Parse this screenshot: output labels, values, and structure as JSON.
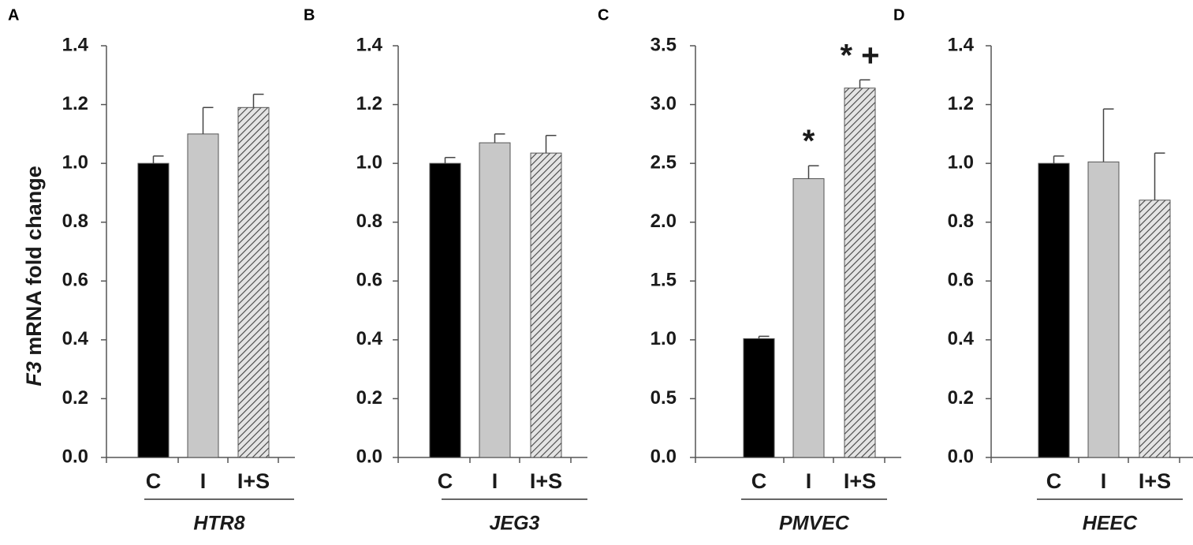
{
  "y_axis_title": {
    "italic": "F3",
    "rest": " mRNA fold change"
  },
  "colors": {
    "control": "#000000",
    "i": "#c8c8c8",
    "hatch": "#444444",
    "hatch_bg": "#e4e4e4",
    "axis": "#555555"
  },
  "chart_data": [
    {
      "type": "bar",
      "panel": "A",
      "cell_line": "HTR8",
      "categories": [
        "C",
        "I",
        "I+S"
      ],
      "values": [
        1.0,
        1.1,
        1.19
      ],
      "errors": [
        0.025,
        0.09,
        0.045
      ],
      "ylim": [
        0,
        1.4
      ],
      "yticks": [
        "0.0",
        "0.2",
        "0.4",
        "0.6",
        "0.8",
        "1.0",
        "1.2",
        "1.4"
      ],
      "annotations": [
        "",
        "",
        ""
      ]
    },
    {
      "type": "bar",
      "panel": "B",
      "cell_line": "JEG3",
      "categories": [
        "C",
        "I",
        "I+S"
      ],
      "values": [
        1.0,
        1.07,
        1.035
      ],
      "errors": [
        0.02,
        0.03,
        0.06
      ],
      "ylim": [
        0,
        1.4
      ],
      "yticks": [
        "0.0",
        "0.2",
        "0.4",
        "0.6",
        "0.8",
        "1.0",
        "1.2",
        "1.4"
      ],
      "annotations": [
        "",
        "",
        ""
      ]
    },
    {
      "type": "bar",
      "panel": "C",
      "cell_line": "PMVEC",
      "categories": [
        "C",
        "I",
        "I+S"
      ],
      "values": [
        1.01,
        2.37,
        3.14
      ],
      "errors": [
        0.02,
        0.11,
        0.07
      ],
      "ylim": [
        0,
        3.5
      ],
      "yticks": [
        "0.0",
        "0.5",
        "1.0",
        "1.5",
        "2.0",
        "2.5",
        "3.0",
        "3.5"
      ],
      "annotations": [
        "",
        "*",
        "* +"
      ]
    },
    {
      "type": "bar",
      "panel": "D",
      "cell_line": "HEEC",
      "categories": [
        "C",
        "I",
        "I+S"
      ],
      "values": [
        1.0,
        1.005,
        0.875
      ],
      "errors": [
        0.025,
        0.18,
        0.16
      ],
      "ylim": [
        0,
        1.4
      ],
      "yticks": [
        "0.0",
        "0.2",
        "0.4",
        "0.6",
        "0.8",
        "1.0",
        "1.2",
        "1.4"
      ],
      "annotations": [
        "",
        "",
        ""
      ]
    }
  ]
}
